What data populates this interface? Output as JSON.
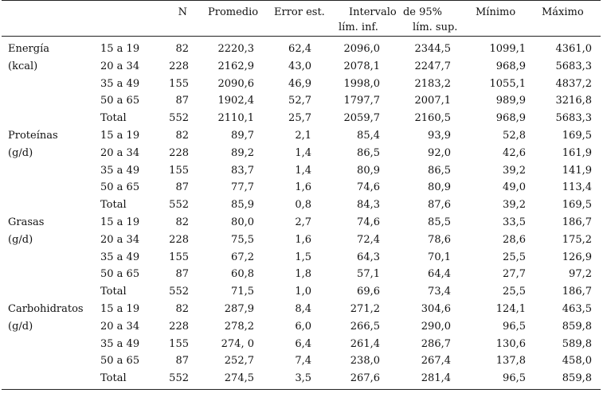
{
  "header": {
    "n": "N",
    "promedio": "Promedio",
    "error": "Error est.",
    "intervalo": "Intervalo  de 95%",
    "lim_inf": "lím. inf.",
    "lim_sup": "lím. sup.",
    "minimo": "Mínimo",
    "maximo": "Máximo"
  },
  "groups": [
    {
      "name": "Energía",
      "unit": "(kcal)",
      "rows": [
        {
          "age": "15 a 19",
          "n": "82",
          "mean": "2220,3",
          "se": "62,4",
          "li": "2096,0",
          "ls": "2344,5",
          "min": "1099,1",
          "max": "4361,0"
        },
        {
          "age": "20 a 34",
          "n": "228",
          "mean": "2162,9",
          "se": "43,0",
          "li": "2078,1",
          "ls": "2247,7",
          "min": "968,9",
          "max": "5683,3"
        },
        {
          "age": "35 a 49",
          "n": "155",
          "mean": "2090,6",
          "se": "46,9",
          "li": "1998,0",
          "ls": "2183,2",
          "min": "1055,1",
          "max": "4837,2"
        },
        {
          "age": "50 a 65",
          "n": "87",
          "mean": "1902,4",
          "se": "52,7",
          "li": "1797,7",
          "ls": "2007,1",
          "min": "989,9",
          "max": "3216,8"
        },
        {
          "age": "Total",
          "n": "552",
          "mean": "2110,1",
          "se": "25,7",
          "li": "2059,7",
          "ls": "2160,5",
          "min": "968,9",
          "max": "5683,3"
        }
      ]
    },
    {
      "name": "Proteínas",
      "unit": "(g/d)",
      "rows": [
        {
          "age": "15 a 19",
          "n": "82",
          "mean": "89,7",
          "se": "2,1",
          "li": "85,4",
          "ls": "93,9",
          "min": "52,8",
          "max": "169,5"
        },
        {
          "age": "20 a 34",
          "n": "228",
          "mean": "89,2",
          "se": "1,4",
          "li": "86,5",
          "ls": "92,0",
          "min": "42,6",
          "max": "161,9"
        },
        {
          "age": "35 a 49",
          "n": "155",
          "mean": "83,7",
          "se": "1,4",
          "li": "80,9",
          "ls": "86,5",
          "min": "39,2",
          "max": "141,9"
        },
        {
          "age": "50 a 65",
          "n": "87",
          "mean": "77,7",
          "se": "1,6",
          "li": "74,6",
          "ls": "80,9",
          "min": "49,0",
          "max": "113,4"
        },
        {
          "age": "Total",
          "n": "552",
          "mean": "85,9",
          "se": "0,8",
          "li": "84,3",
          "ls": "87,6",
          "min": "39,2",
          "max": "169,5"
        }
      ]
    },
    {
      "name": "Grasas",
      "unit": "(g/d)",
      "rows": [
        {
          "age": "15 a 19",
          "n": "82",
          "mean": "80,0",
          "se": "2,7",
          "li": "74,6",
          "ls": "85,5",
          "min": "33,5",
          "max": "186,7"
        },
        {
          "age": "20 a 34",
          "n": "228",
          "mean": "75,5",
          "se": "1,6",
          "li": "72,4",
          "ls": "78,6",
          "min": "28,6",
          "max": "175,2"
        },
        {
          "age": "35 a 49",
          "n": "155",
          "mean": "67,2",
          "se": "1,5",
          "li": "64,3",
          "ls": "70,1",
          "min": "25,5",
          "max": "126,9"
        },
        {
          "age": "50 a 65",
          "n": "87",
          "mean": "60,8",
          "se": "1,8",
          "li": "57,1",
          "ls": "64,4",
          "min": "27,7",
          "max": "97,2"
        },
        {
          "age": "Total",
          "n": "552",
          "mean": "71,5",
          "se": "1,0",
          "li": "69,6",
          "ls": "73,4",
          "min": "25,5",
          "max": "186,7"
        }
      ]
    },
    {
      "name": "Carbohidratos",
      "unit": "(g/d)",
      "rows": [
        {
          "age": "15 a 19",
          "n": "82",
          "mean": "287,9",
          "se": "8,4",
          "li": "271,2",
          "ls": "304,6",
          "min": "124,1",
          "max": "463,5"
        },
        {
          "age": "20 a 34",
          "n": "228",
          "mean": "278,2",
          "se": "6,0",
          "li": "266,5",
          "ls": "290,0",
          "min": "96,5",
          "max": "859,8"
        },
        {
          "age": "35 a 49",
          "n": "155",
          "mean": "274, 0",
          "se": "6,4",
          "li": "261,4",
          "ls": "286,7",
          "min": "130,6",
          "max": "589,8"
        },
        {
          "age": "50 a 65",
          "n": "87",
          "mean": "252,7",
          "se": "7,4",
          "li": "238,0",
          "ls": "267,4",
          "min": "137,8",
          "max": "458,0"
        },
        {
          "age": "Total",
          "n": "552",
          "mean": "274,5",
          "se": "3,5",
          "li": "267,6",
          "ls": "281,4",
          "min": "96,5",
          "max": "859,8"
        }
      ]
    }
  ]
}
